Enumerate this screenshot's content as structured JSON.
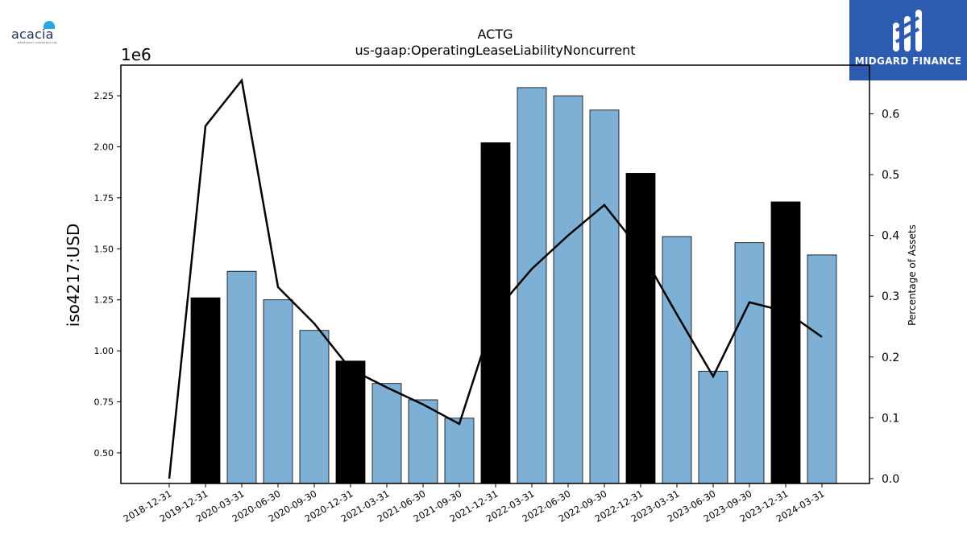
{
  "logos": {
    "left": {
      "text": "acacia",
      "tagline": "RESEARCH CORPORATION"
    },
    "right": {
      "text": "MIDGARD FINANCE"
    }
  },
  "colors": {
    "bar_normal": "#7eb0d5",
    "bar_highlight": "#000000",
    "line": "#000000",
    "brand_blue": "#2d5bb0"
  },
  "chart_data": {
    "type": "bar",
    "title": "ACTG",
    "subtitle": "us-gaap:OperatingLeaseLiabilityNoncurrent",
    "ylabel": "iso4217:USD",
    "y_offset_text": "1e6",
    "y2label": "Percentage of Assets",
    "categories": [
      "2018-12-31",
      "2019-12-31",
      "2020-03-31",
      "2020-06-30",
      "2020-09-30",
      "2020-12-31",
      "2021-03-31",
      "2021-06-30",
      "2021-09-30",
      "2021-12-31",
      "2022-03-31",
      "2022-06-30",
      "2022-09-30",
      "2022-12-31",
      "2023-03-31",
      "2023-06-30",
      "2023-09-30",
      "2023-12-31",
      "2024-03-31"
    ],
    "ylim": [
      0.35,
      2.4
    ],
    "yticks": [
      0.5,
      0.75,
      1.0,
      1.25,
      1.5,
      1.75,
      2.0,
      2.25
    ],
    "y2lim": [
      -0.008,
      0.68
    ],
    "y2ticks": [
      0.0,
      0.1,
      0.2,
      0.3,
      0.4,
      0.5,
      0.6
    ],
    "series": [
      {
        "name": "iso4217:USD",
        "type": "bar",
        "values": [
          null,
          1.26,
          1.39,
          1.25,
          1.1,
          0.95,
          0.84,
          0.76,
          0.67,
          2.02,
          2.29,
          2.25,
          2.18,
          1.87,
          1.56,
          0.9,
          1.53,
          1.73,
          1.47
        ],
        "highlight": [
          false,
          true,
          false,
          false,
          false,
          true,
          false,
          false,
          false,
          true,
          false,
          false,
          false,
          true,
          false,
          false,
          false,
          true,
          false
        ]
      },
      {
        "name": "Percentage of Assets",
        "type": "line",
        "axis": "right",
        "values": [
          0.0,
          0.58,
          0.655,
          0.315,
          0.255,
          0.18,
          0.15,
          0.122,
          0.09,
          0.275,
          0.345,
          0.4,
          0.45,
          0.375,
          0.27,
          0.168,
          0.29,
          0.275,
          0.233
        ]
      }
    ]
  }
}
